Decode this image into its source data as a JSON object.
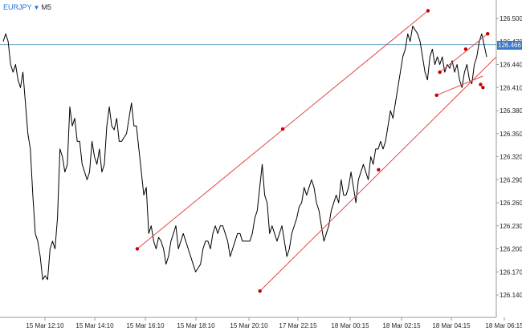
{
  "header": {
    "symbol": "EURJPY",
    "dropdown_icon": "triangle-down-icon",
    "timeframe": "M5"
  },
  "current_price_label": "126.466",
  "colors": {
    "price_line": "#000000",
    "trendlines": "#e04848",
    "anchor_points": "#c40000",
    "current_price_line": "#6fa6c9",
    "price_tag_bg": "#3c79c4",
    "axis": "#999999",
    "symbol_text": "#1a73d6"
  },
  "chart_data": {
    "type": "line",
    "title": "",
    "xlabel": "",
    "ylabel": "",
    "y_ticks": [
      "126.500",
      "126.470",
      "126.440",
      "126.410",
      "126.380",
      "126.350",
      "126.320",
      "126.290",
      "126.260",
      "126.230",
      "126.200",
      "126.170",
      "126.140"
    ],
    "x_ticks": [
      "15 Mar 12:10",
      "15 Mar 14:10",
      "15 Mar 16:10",
      "15 Mar 18:10",
      "15 Mar 20:10",
      "17 Mar 22:15",
      "18 Mar 00:15",
      "18 Mar 02:15",
      "18 Mar 04:15",
      "18 Mar 06:15"
    ],
    "ylim": [
      126.12,
      126.52
    ],
    "grid": false,
    "current_price": 126.466,
    "series": [
      {
        "values": [
          126.47,
          126.48,
          126.47,
          126.44,
          126.43,
          126.44,
          126.42,
          126.41,
          126.43,
          126.39,
          126.35,
          126.33,
          126.27,
          126.22,
          126.21,
          126.19,
          126.16,
          126.165,
          126.16,
          126.2,
          126.21,
          126.2,
          126.24,
          126.33,
          126.32,
          126.3,
          126.31,
          126.385,
          126.36,
          126.37,
          126.34,
          126.34,
          126.31,
          126.3,
          126.29,
          126.3,
          126.34,
          126.32,
          126.31,
          126.33,
          126.3,
          126.31,
          126.36,
          126.385,
          126.36,
          126.355,
          126.37,
          126.34,
          126.34,
          126.345,
          126.35,
          126.37,
          126.39,
          126.36,
          126.36,
          126.33,
          126.3,
          126.27,
          126.28,
          126.22,
          126.23,
          126.21,
          126.2,
          126.215,
          126.21,
          126.2,
          126.18,
          126.19,
          126.21,
          126.22,
          126.23,
          126.2,
          126.21,
          126.22,
          126.21,
          126.2,
          126.19,
          126.18,
          126.17,
          126.175,
          126.18,
          126.2,
          126.21,
          126.21,
          126.2,
          126.22,
          126.23,
          126.22,
          126.23,
          126.23,
          126.22,
          126.21,
          126.19,
          126.2,
          126.21,
          126.22,
          126.22,
          126.21,
          126.21,
          126.21,
          126.21,
          126.22,
          126.24,
          126.25,
          126.28,
          126.31,
          126.27,
          126.26,
          126.22,
          126.23,
          126.22,
          126.21,
          126.22,
          126.23,
          126.21,
          126.19,
          126.2,
          126.22,
          126.23,
          126.24,
          126.255,
          126.26,
          126.28,
          126.27,
          126.28,
          126.29,
          126.28,
          126.26,
          126.25,
          126.23,
          126.21,
          126.22,
          126.23,
          126.25,
          126.26,
          126.27,
          126.26,
          126.29,
          126.27,
          126.27,
          126.28,
          126.3,
          126.28,
          126.26,
          126.29,
          126.3,
          126.31,
          126.3,
          126.29,
          126.32,
          126.31,
          126.33,
          126.33,
          126.34,
          126.33,
          126.34,
          126.36,
          126.38,
          126.37,
          126.39,
          126.41,
          126.43,
          126.45,
          126.46,
          126.48,
          126.47,
          126.49,
          126.485,
          126.48,
          126.47,
          126.45,
          126.43,
          126.42,
          126.45,
          126.46,
          126.44,
          126.45,
          126.44,
          126.45,
          126.43,
          126.44,
          126.435,
          126.445,
          126.43,
          126.44,
          126.42,
          126.41,
          126.43,
          126.44,
          126.42,
          126.415,
          126.44,
          126.45,
          126.47,
          126.48,
          126.465,
          126.45
        ]
      }
    ],
    "trendlines": [
      {
        "from": [
          0.2742,
          126.2
        ],
        "to": [
          0.8619,
          126.51
        ]
      },
      {
        "from": [
          0.5222,
          126.145
        ],
        "to": [
          1.0,
          126.45
        ]
      },
      {
        "from": [
          0.8794,
          126.4
        ],
        "to": [
          0.973,
          126.425
        ]
      },
      {
        "from": [
          0.8858,
          126.43
        ],
        "to": [
          0.9826,
          126.48
        ]
      }
    ],
    "anchor_points": [
      [
        0.2742,
        126.2
      ],
      [
        0.5683,
        126.356
      ],
      [
        0.8619,
        126.51
      ],
      [
        0.5222,
        126.145
      ],
      [
        0.762,
        126.303
      ],
      [
        0.973,
        126.41
      ],
      [
        0.8794,
        126.4
      ],
      [
        0.9683,
        126.414
      ],
      [
        0.8858,
        126.43
      ],
      [
        0.9381,
        126.46
      ],
      [
        0.9826,
        126.48
      ]
    ]
  }
}
